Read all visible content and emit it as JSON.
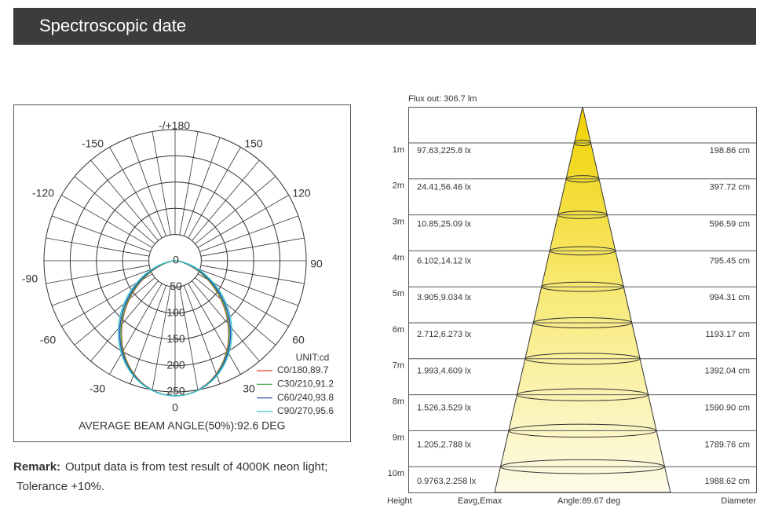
{
  "header": {
    "title": "Spectroscopic date"
  },
  "polar": {
    "angle_labels": [
      "-/+180",
      "-150",
      "150",
      "-120",
      "120",
      "-90",
      "90",
      "-60",
      "60",
      "-30",
      "30",
      "0"
    ],
    "radial_labels": [
      "0",
      "50",
      "100",
      "150",
      "200",
      "250"
    ],
    "unit": "UNIT:cd",
    "legend": [
      {
        "name": "C0/180,89.7",
        "color": "#e8403a"
      },
      {
        "name": "C30/210,91.2",
        "color": "#3aa63a"
      },
      {
        "name": "C60/240,93.8",
        "color": "#2f4fb8"
      },
      {
        "name": "C90/270,95.6",
        "color": "#3cc8c8"
      }
    ],
    "beam_angle": "AVERAGE BEAM ANGLE(50%):92.6 DEG"
  },
  "remark": {
    "label": "Remark:",
    "line1": "Output data is from test result of 4000K neon light;",
    "line2": "Tolerance +10%."
  },
  "cone": {
    "flux": "Flux out: 306.7 lm",
    "rows": [
      [
        "1m",
        "97.63,225.8 lx",
        "198.86 cm"
      ],
      [
        "2m",
        "24.41,56.46 lx",
        "397.72 cm"
      ],
      [
        "3m",
        "10.85,25.09 lx",
        "596.59 cm"
      ],
      [
        "4m",
        "6.102,14.12 lx",
        "795.45 cm"
      ],
      [
        "5m",
        "3.905,9.034 lx",
        "994.31 cm"
      ],
      [
        "6m",
        "2.712,6.273 lx",
        "1193.17 cm"
      ],
      [
        "7m",
        "1.993,4.609 lx",
        "1392.04 cm"
      ],
      [
        "8m",
        "1.526,3.529 lx",
        "1590.90 cm"
      ],
      [
        "9m",
        "1.205,2.788 lx",
        "1789.76 cm"
      ],
      [
        "10m",
        "0.9763,2.258 lx",
        "1988.62 cm"
      ]
    ],
    "footer": [
      "Height",
      "Eavg,Emax",
      "Angle:89.67 deg",
      "Diameter"
    ]
  }
}
